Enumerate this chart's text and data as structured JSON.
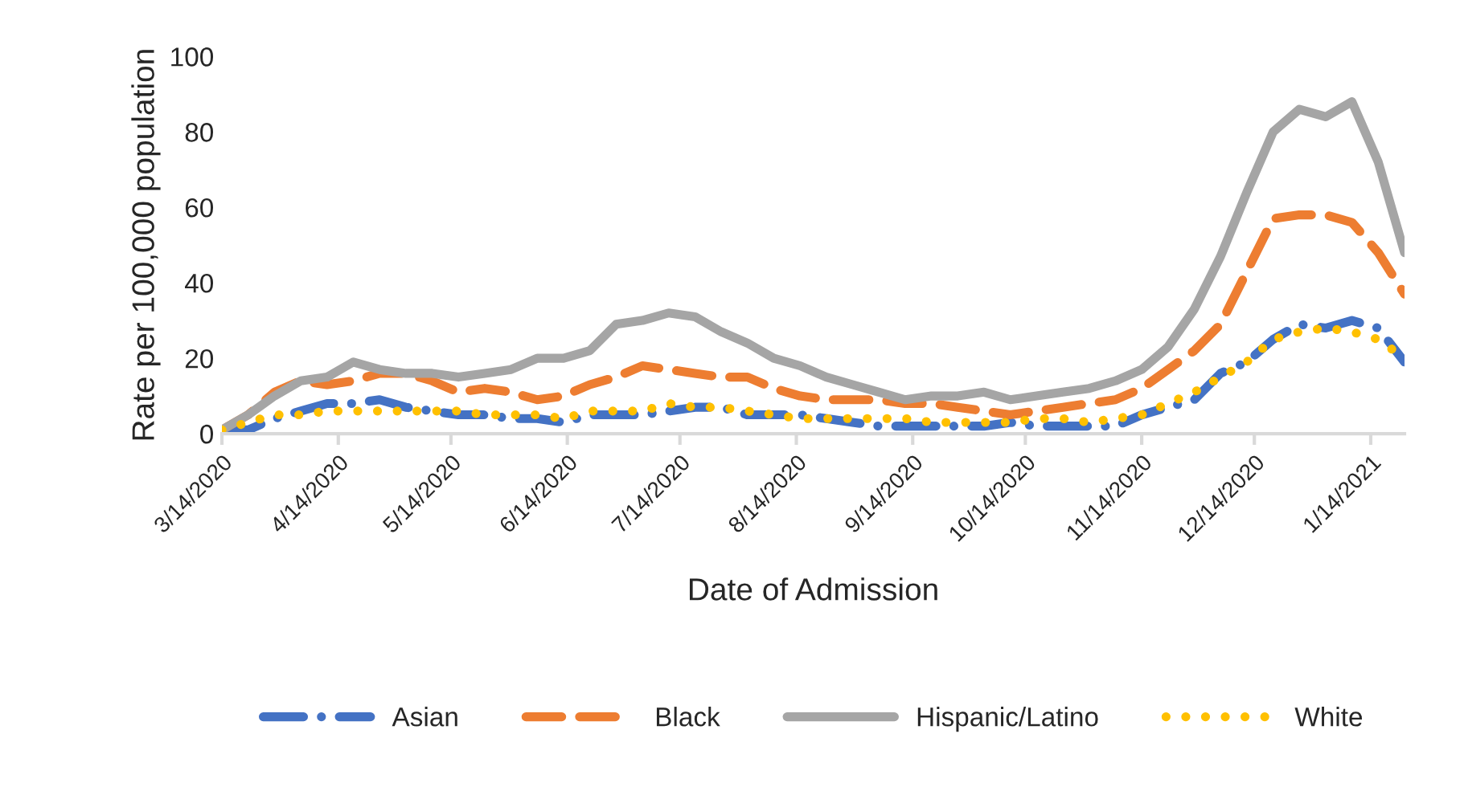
{
  "chart_data": {
    "type": "line",
    "xlabel": "Date of Admission",
    "ylabel": "Rate per 100,000 population",
    "x": [
      "2020-03-14",
      "2020-03-21",
      "2020-03-28",
      "2020-04-04",
      "2020-04-11",
      "2020-04-18",
      "2020-04-25",
      "2020-05-02",
      "2020-05-09",
      "2020-05-16",
      "2020-05-23",
      "2020-05-30",
      "2020-06-06",
      "2020-06-13",
      "2020-06-20",
      "2020-06-27",
      "2020-07-04",
      "2020-07-11",
      "2020-07-18",
      "2020-07-25",
      "2020-08-01",
      "2020-08-08",
      "2020-08-15",
      "2020-08-22",
      "2020-08-29",
      "2020-09-05",
      "2020-09-12",
      "2020-09-19",
      "2020-09-26",
      "2020-10-03",
      "2020-10-10",
      "2020-10-17",
      "2020-10-24",
      "2020-10-31",
      "2020-11-07",
      "2020-11-14",
      "2020-11-21",
      "2020-11-28",
      "2020-12-05",
      "2020-12-12",
      "2020-12-19",
      "2020-12-26",
      "2021-01-02",
      "2021-01-09",
      "2021-01-16",
      "2021-01-23"
    ],
    "series": [
      {
        "name": "Asian",
        "color": "#4472c4",
        "line_style": "dashdot",
        "values": [
          1,
          1,
          4,
          6,
          8,
          8,
          9,
          7,
          6,
          5,
          5,
          4,
          4,
          3,
          5,
          5,
          5,
          6,
          7,
          7,
          5,
          5,
          5,
          4,
          3,
          2,
          2,
          2,
          2,
          2,
          3,
          2,
          2,
          2,
          2,
          5,
          7,
          9,
          16,
          19,
          25,
          29,
          28,
          30,
          28,
          19
        ]
      },
      {
        "name": "Black",
        "color": "#ed7d31",
        "line_style": "dashed",
        "values": [
          1,
          5,
          11,
          14,
          13,
          14,
          16,
          16,
          14,
          11,
          12,
          11,
          9,
          10,
          13,
          15,
          18,
          17,
          16,
          15,
          15,
          12,
          10,
          9,
          9,
          9,
          8,
          8,
          7,
          6,
          5,
          6,
          7,
          8,
          9,
          12,
          17,
          22,
          29,
          43,
          57,
          58,
          58,
          56,
          48,
          37
        ]
      },
      {
        "name": "Hispanic/Latino",
        "color": "#a5a5a5",
        "line_style": "solid",
        "values": [
          1,
          5,
          10,
          14,
          15,
          19,
          17,
          16,
          16,
          15,
          16,
          17,
          20,
          20,
          22,
          29,
          30,
          32,
          31,
          27,
          24,
          20,
          18,
          15,
          13,
          11,
          9,
          10,
          10,
          11,
          9,
          10,
          11,
          12,
          14,
          17,
          23,
          33,
          47,
          64,
          80,
          86,
          84,
          88,
          72,
          48
        ]
      },
      {
        "name": "White",
        "color": "#ffc000",
        "line_style": "dotted",
        "values": [
          1,
          3,
          5,
          5,
          6,
          6,
          6,
          6,
          6,
          6,
          5,
          5,
          5,
          4,
          6,
          6,
          6,
          8,
          7,
          7,
          6,
          5,
          4,
          4,
          4,
          4,
          4,
          3,
          3,
          3,
          3,
          4,
          4,
          3,
          4,
          5,
          8,
          11,
          15,
          19,
          25,
          27,
          28,
          27,
          25,
          20
        ]
      }
    ],
    "xlim": [
      "2020-03-14",
      "2021-01-23"
    ],
    "xticks": [
      {
        "value": "2020-03-14",
        "label": "3/14/2020"
      },
      {
        "value": "2020-04-14",
        "label": "4/14/2020"
      },
      {
        "value": "2020-05-14",
        "label": "5/14/2020"
      },
      {
        "value": "2020-06-14",
        "label": "6/14/2020"
      },
      {
        "value": "2020-07-14",
        "label": "7/14/2020"
      },
      {
        "value": "2020-08-14",
        "label": "8/14/2020"
      },
      {
        "value": "2020-09-14",
        "label": "9/14/2020"
      },
      {
        "value": "2020-10-14",
        "label": "10/14/2020"
      },
      {
        "value": "2020-11-14",
        "label": "11/14/2020"
      },
      {
        "value": "2020-12-14",
        "label": "12/14/2020"
      },
      {
        "value": "2021-01-14",
        "label": "1/14/2021"
      }
    ],
    "ylim": [
      0,
      100
    ],
    "yticks": [
      0,
      20,
      40,
      60,
      80,
      100
    ],
    "legend": "bottom"
  }
}
